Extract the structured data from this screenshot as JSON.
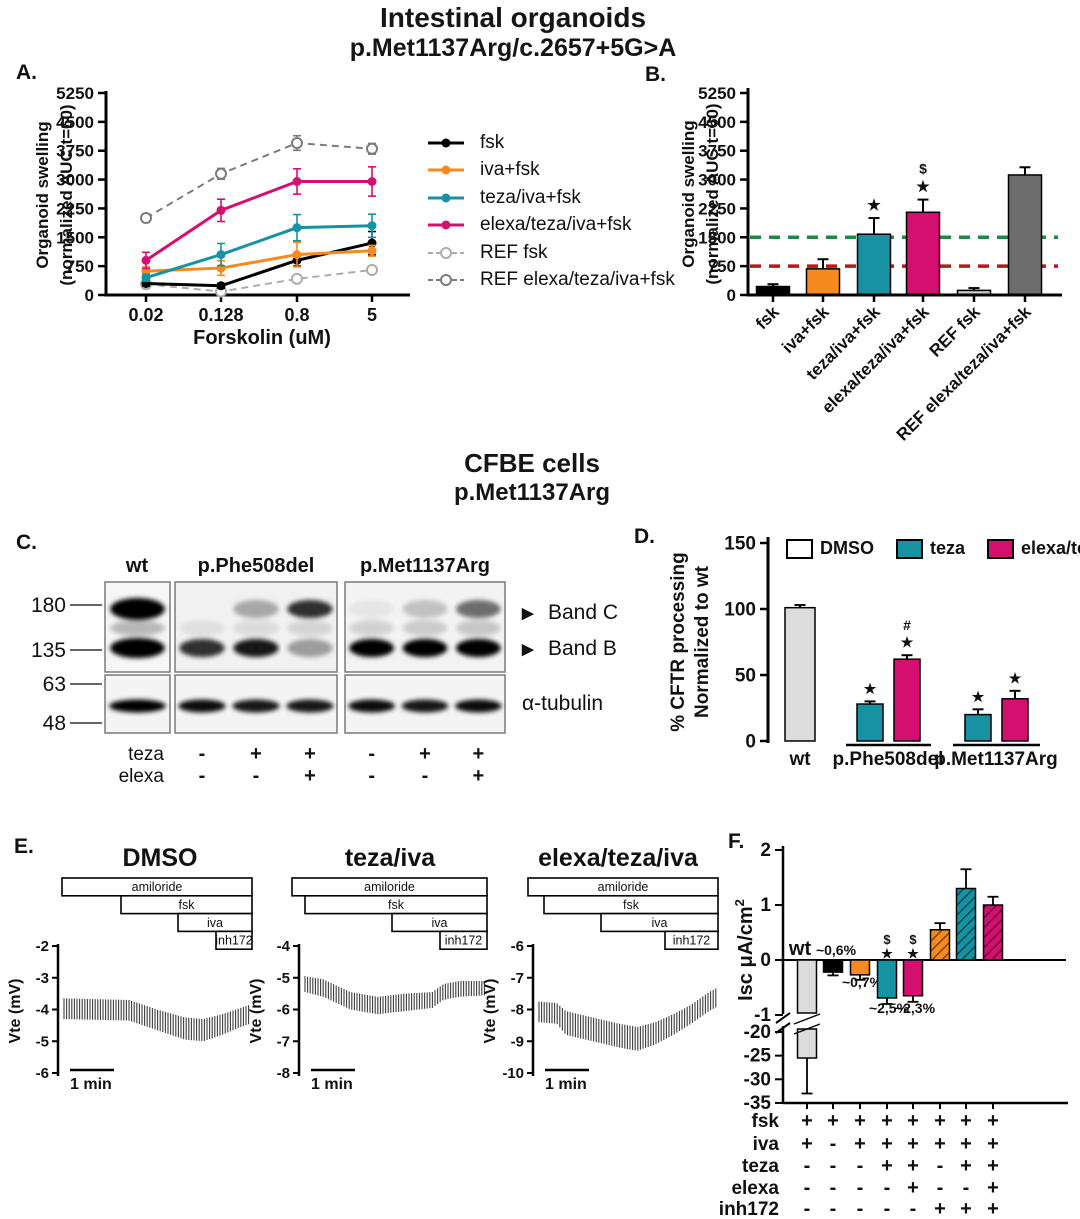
{
  "figure": {
    "top_title_line1": "Intestinal organoids",
    "top_title_line2": "p.Met1137Arg/c.2657+5G>A",
    "mid_title_line1": "CFBE cells",
    "mid_title_line2": "p.Met1137Arg",
    "panel_labels": {
      "A": "A.",
      "B": "B.",
      "C": "C.",
      "D": "D.",
      "E": "E.",
      "F": "F."
    }
  },
  "colors": {
    "black": "#000000",
    "orange": "#F6891F",
    "teal": "#1792A3",
    "magenta": "#D40F6F",
    "gray_wt": "#DCDCDC",
    "gray_bar_light": "#C7C7C7",
    "gray_bar_dark": "#6D6D6D",
    "ref_light": "#ACACAC",
    "ref_dark": "#7C7C7C",
    "green": "#1B8A44",
    "red": "#B5191F",
    "white": "#FFFFFF"
  },
  "chart_data": [
    {
      "panel": "A",
      "type": "line",
      "x_categories": [
        "0.02",
        "0.128",
        "0.8",
        "5"
      ],
      "xlabel": "Forskolin (uM)",
      "ylabel_line1": "Organoid swelling",
      "ylabel_line2": "(normalized AUC t=60)",
      "yticks": [
        0,
        750,
        1500,
        2250,
        3000,
        3750,
        4500,
        5250
      ],
      "ylim": [
        0,
        5250
      ],
      "series": [
        {
          "name": "fsk",
          "color": "black",
          "line": "solid",
          "marker": "filled",
          "values": [
            300,
            240,
            900,
            1350
          ],
          "errors": [
            70,
            60,
            150,
            300
          ]
        },
        {
          "name": "iva+fsk",
          "color": "orange",
          "line": "solid",
          "marker": "filled",
          "values": [
            620,
            700,
            1050,
            1150
          ],
          "errors": [
            110,
            190,
            320,
            140
          ]
        },
        {
          "name": "teza/iva+fsk",
          "color": "teal",
          "line": "solid",
          "marker": "filled",
          "values": [
            450,
            1050,
            1750,
            1800
          ],
          "errors": [
            90,
            290,
            340,
            300
          ]
        },
        {
          "name": "elexa/teza/iva+fsk",
          "color": "magenta",
          "line": "solid",
          "marker": "filled",
          "values": [
            900,
            2200,
            2950,
            2950
          ],
          "errors": [
            210,
            290,
            330,
            380
          ]
        },
        {
          "name": "REF fsk",
          "color": "ref_light",
          "line": "dashed",
          "marker": "open",
          "values": [
            280,
            90,
            420,
            650
          ],
          "errors": [
            50,
            70,
            50,
            50
          ]
        },
        {
          "name": "REF elexa/teza/iva+fsk",
          "color": "ref_dark",
          "line": "dashed",
          "marker": "open",
          "values": [
            2000,
            3150,
            3950,
            3800
          ],
          "errors": [
            110,
            140,
            190,
            140
          ]
        }
      ]
    },
    {
      "panel": "B",
      "type": "bar",
      "categories": [
        "fsk",
        "iva+fsk",
        "teza/iva+fsk",
        "elexa/teza/iva+fsk",
        "REF fsk",
        "REF elexa/teza/iva+fsk"
      ],
      "values": [
        220,
        680,
        1580,
        2150,
        120,
        3120
      ],
      "errors": [
        60,
        250,
        420,
        330,
        60,
        200
      ],
      "bar_colors": [
        "black",
        "orange",
        "teal",
        "magenta",
        "gray_bar_light",
        "gray_bar_dark"
      ],
      "sig": [
        [],
        [],
        [
          "★"
        ],
        [
          "★",
          "$"
        ],
        [],
        []
      ],
      "ylabel_line1": "Organoid swelling",
      "ylabel_line2": "(normalized AUC t=60)",
      "yticks": [
        0,
        750,
        1500,
        2250,
        3000,
        3750,
        4500,
        5250
      ],
      "ylim": [
        0,
        5250
      ],
      "threshold_lines": [
        {
          "value": 1500,
          "color": "green"
        },
        {
          "value": 750,
          "color": "red"
        }
      ]
    },
    {
      "panel": "D",
      "type": "bar",
      "ylabel_line1": "% CFTR processing",
      "ylabel_line2": "Normalized to wt",
      "yticks": [
        0,
        50,
        100,
        150
      ],
      "ylim": [
        0,
        150
      ],
      "legend": [
        {
          "label": "DMSO",
          "color": "white"
        },
        {
          "label": "teza",
          "color": "teal"
        },
        {
          "label": "elexa/teza",
          "color": "magenta"
        }
      ],
      "groups": [
        {
          "name": "wt",
          "bars": [
            {
              "value": 101,
              "error": 2,
              "color": "gray_wt",
              "sig": []
            }
          ]
        },
        {
          "name": "p.Phe508del",
          "bars": [
            {
              "value": 28,
              "error": 2,
              "color": "teal",
              "sig": [
                "★"
              ]
            },
            {
              "value": 62,
              "error": 3,
              "color": "magenta",
              "sig": [
                "★",
                "#"
              ]
            }
          ]
        },
        {
          "name": "p.Met1137Arg",
          "bars": [
            {
              "value": 20,
              "error": 4,
              "color": "teal",
              "sig": [
                "★"
              ]
            },
            {
              "value": 32,
              "error": 6,
              "color": "magenta",
              "sig": [
                "★"
              ]
            }
          ]
        }
      ]
    },
    {
      "panel": "E",
      "type": "traces",
      "traces": [
        {
          "title": "DMSO",
          "ylabel": "Vte (mV)",
          "yticks": [
            -2,
            -3,
            -4,
            -5,
            -6
          ],
          "scalebar": "1 min",
          "protocol": [
            "amiloride",
            "fsk",
            "iva",
            "inh172"
          ],
          "band": [
            [
              0,
              -3.65,
              -4.3
            ],
            [
              0.35,
              -3.7,
              -4.35
            ],
            [
              0.5,
              -4.0,
              -4.65
            ],
            [
              0.65,
              -4.25,
              -4.95
            ],
            [
              0.75,
              -4.3,
              -5.0
            ],
            [
              0.85,
              -4.15,
              -4.8
            ],
            [
              0.95,
              -3.95,
              -4.55
            ],
            [
              1,
              -3.85,
              -4.45
            ]
          ]
        },
        {
          "title": "teza/iva",
          "ylabel": "Vte (mV)",
          "yticks": [
            -4,
            -5,
            -6,
            -7,
            -8
          ],
          "scalebar": "1 min",
          "protocol": [
            "amiloride",
            "fsk",
            "iva",
            "inh172"
          ],
          "band": [
            [
              0,
              -4.95,
              -5.45
            ],
            [
              0.1,
              -5.05,
              -5.6
            ],
            [
              0.25,
              -5.45,
              -6.0
            ],
            [
              0.4,
              -5.6,
              -6.15
            ],
            [
              0.55,
              -5.5,
              -6.05
            ],
            [
              0.7,
              -5.45,
              -5.95
            ],
            [
              0.76,
              -5.2,
              -5.7
            ],
            [
              0.85,
              -5.1,
              -5.6
            ],
            [
              1,
              -5.1,
              -5.55
            ]
          ]
        },
        {
          "title": "elexa/teza/iva",
          "ylabel": "Vte (mV)",
          "yticks": [
            -6,
            -7,
            -8,
            -9,
            -10
          ],
          "scalebar": "1 min",
          "protocol": [
            "amiloride",
            "fsk",
            "iva",
            "inh172"
          ],
          "band": [
            [
              0,
              -7.75,
              -8.4
            ],
            [
              0.1,
              -7.8,
              -8.45
            ],
            [
              0.15,
              -8.05,
              -8.8
            ],
            [
              0.3,
              -8.25,
              -9.0
            ],
            [
              0.45,
              -8.45,
              -9.2
            ],
            [
              0.55,
              -8.55,
              -9.3
            ],
            [
              0.65,
              -8.4,
              -9.1
            ],
            [
              0.75,
              -8.15,
              -8.8
            ],
            [
              0.85,
              -7.85,
              -8.45
            ],
            [
              0.95,
              -7.45,
              -8.05
            ],
            [
              1,
              -7.3,
              -7.9
            ]
          ]
        }
      ]
    },
    {
      "panel": "F",
      "type": "bar-broken-axis",
      "ylabel": "Isc μA/cm",
      "ylabel_sup": "2",
      "yticks_upper": [
        2,
        1,
        0,
        -1
      ],
      "yticks_lower": [
        -20,
        -25,
        -30,
        -35
      ],
      "bars": [
        {
          "value": -25.5,
          "error": 7.5,
          "color": "gray_wt",
          "hatch": false,
          "label_above": "wt",
          "sig": []
        },
        {
          "value": -0.22,
          "error": 0.06,
          "color": "black",
          "hatch": false,
          "label_above": "~0,6%",
          "sig": []
        },
        {
          "value": -0.27,
          "error": 0.09,
          "color": "orange",
          "hatch": false,
          "label_below": "~0,7%",
          "sig": []
        },
        {
          "value": -0.69,
          "error": 0.11,
          "color": "teal",
          "hatch": false,
          "label_below": "~2,5%",
          "sig": [
            "★",
            "$"
          ]
        },
        {
          "value": -0.65,
          "error": 0.11,
          "color": "magenta",
          "hatch": false,
          "label_below": "~2,3%",
          "sig": [
            "★",
            "$"
          ]
        },
        {
          "value": 0.55,
          "error": 0.12,
          "color": "orange",
          "hatch": true,
          "sig": []
        },
        {
          "value": 1.3,
          "error": 0.35,
          "color": "teal",
          "hatch": true,
          "sig": []
        },
        {
          "value": 1.0,
          "error": 0.15,
          "color": "magenta",
          "hatch": true,
          "sig": []
        }
      ],
      "treatment_matrix": {
        "rows": [
          "fsk",
          "iva",
          "teza",
          "elexa",
          "inh172"
        ],
        "values": [
          [
            "+",
            "+",
            "+",
            "+",
            "+",
            "+",
            "+",
            "+"
          ],
          [
            "+",
            "-",
            "+",
            "+",
            "+",
            "+",
            "+",
            "+"
          ],
          [
            "-",
            "-",
            "-",
            "+",
            "+",
            "-",
            "+",
            "+"
          ],
          [
            "-",
            "-",
            "-",
            "-",
            "+",
            "-",
            "-",
            "+"
          ],
          [
            "-",
            "-",
            "-",
            "-",
            "-",
            "+",
            "+",
            "+"
          ]
        ]
      }
    }
  ],
  "western_blot": {
    "group_labels": [
      "wt",
      "p.Phe508del",
      "p.Met1137Arg"
    ],
    "mw_markers": [
      "180",
      "135",
      "63",
      "48"
    ],
    "arrow": "▶",
    "band_c_label": "Band C",
    "band_b_label": "Band B",
    "loading_label": "α-tubulin",
    "treatment_rows": [
      "teza",
      "elexa"
    ],
    "treatments": {
      "phe": [
        [
          "-",
          "+",
          "+"
        ],
        [
          "-",
          "-",
          "+"
        ]
      ],
      "met": [
        [
          "-",
          "+",
          "+"
        ],
        [
          "-",
          "-",
          "+"
        ]
      ]
    },
    "lanes": {
      "wt": [
        {
          "c": 1,
          "b": 1,
          "smear": 0.55,
          "tub": 1
        }
      ],
      "phe": [
        {
          "c": 0,
          "b": 0.8,
          "smear": 0.15,
          "tub": 0.95
        },
        {
          "c": 0.3,
          "b": 0.9,
          "smear": 0.2,
          "tub": 0.9
        },
        {
          "c": 0.8,
          "b": 0.35,
          "smear": 0.25,
          "tub": 0.9
        }
      ],
      "met": [
        {
          "c": 0.05,
          "b": 1,
          "smear": 0.3,
          "tub": 0.95
        },
        {
          "c": 0.2,
          "b": 1,
          "smear": 0.35,
          "tub": 0.9
        },
        {
          "c": 0.55,
          "b": 1,
          "smear": 0.4,
          "tub": 0.95
        }
      ]
    }
  }
}
